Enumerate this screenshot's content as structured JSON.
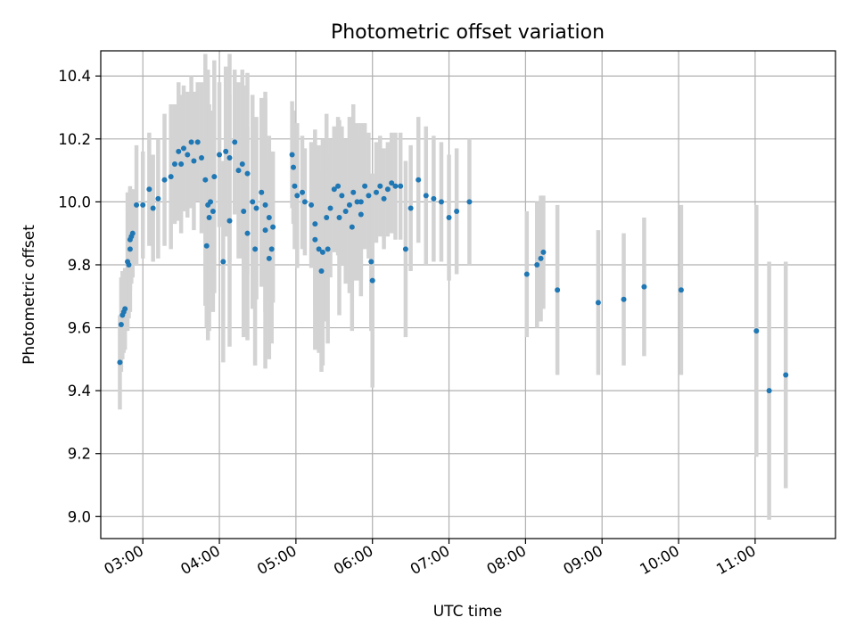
{
  "chart_data": {
    "type": "scatter",
    "title": "Photometric offset variation",
    "xlabel": "UTC time",
    "ylabel": "Photometric offset",
    "grid": true,
    "xlim": [
      "02:27",
      "12:03"
    ],
    "ylim": [
      8.93,
      10.48
    ],
    "x_ticks": [
      "03:00",
      "04:00",
      "05:00",
      "06:00",
      "07:00",
      "08:00",
      "09:00",
      "10:00",
      "11:00"
    ],
    "y_ticks": [
      "9.0",
      "9.2",
      "9.4",
      "9.6",
      "9.8",
      "10.0",
      "10.2",
      "10.4"
    ],
    "colors": {
      "points": "#1f77b4",
      "error_bars": "#d3d3d3",
      "grid": "#b0b0b0"
    },
    "series": [
      {
        "x": [
          "02:42",
          "02:43",
          "02:44",
          "02:45",
          "02:46",
          "02:48",
          "02:49",
          "02:50",
          "02:50",
          "02:51",
          "02:52",
          "02:55",
          "03:00",
          "03:05",
          "03:08",
          "03:12",
          "03:17",
          "03:22",
          "03:25",
          "03:28",
          "03:30",
          "03:32",
          "03:35",
          "03:38",
          "03:40",
          "03:43",
          "03:46",
          "03:49",
          "03:51",
          "03:53",
          "03:56",
          "04:00",
          "04:05",
          "04:08",
          "04:12",
          "04:15",
          "04:18",
          "04:22",
          "04:26",
          "04:29",
          "04:33",
          "04:36",
          "04:39",
          "04:42",
          "03:50",
          "03:52",
          "03:55",
          "04:03",
          "04:08",
          "04:19",
          "04:22",
          "04:28",
          "04:36",
          "04:39",
          "04:41",
          "04:57",
          "04:58",
          "04:59",
          "05:01",
          "05:05",
          "05:07",
          "05:12",
          "05:15",
          "05:18",
          "05:21",
          "05:24",
          "05:27",
          "05:30",
          "05:33",
          "05:36",
          "05:39",
          "05:42",
          "05:45",
          "05:48",
          "05:51",
          "05:54",
          "05:57",
          "05:15",
          "05:20",
          "05:25",
          "05:34",
          "05:44",
          "05:51",
          "05:59",
          "06:00",
          "06:03",
          "06:06",
          "06:09",
          "06:12",
          "06:15",
          "06:18",
          "06:22",
          "06:26",
          "06:30",
          "06:36",
          "06:42",
          "06:48",
          "06:54",
          "07:00",
          "07:06",
          "07:16",
          "08:01",
          "08:09",
          "08:12",
          "08:14",
          "08:25",
          "08:57",
          "09:17",
          "09:33",
          "10:02",
          "11:01",
          "11:11",
          "11:24"
        ],
        "y": [
          9.49,
          9.61,
          9.64,
          9.65,
          9.66,
          9.81,
          9.8,
          9.85,
          9.88,
          9.89,
          9.9,
          9.99,
          9.99,
          10.04,
          9.98,
          10.01,
          10.07,
          10.08,
          10.12,
          10.16,
          10.12,
          10.17,
          10.15,
          10.19,
          10.13,
          10.19,
          10.14,
          10.07,
          9.99,
          10.0,
          10.08,
          10.15,
          10.16,
          10.14,
          10.19,
          10.1,
          10.12,
          10.09,
          10.0,
          9.98,
          10.03,
          9.99,
          9.95,
          9.92,
          9.86,
          9.95,
          9.97,
          9.81,
          9.94,
          9.97,
          9.9,
          9.85,
          9.91,
          9.82,
          9.85,
          10.15,
          10.11,
          10.05,
          10.02,
          10.03,
          10.0,
          9.99,
          9.93,
          9.85,
          9.84,
          9.95,
          9.98,
          10.04,
          10.05,
          10.02,
          9.97,
          9.99,
          10.03,
          10.0,
          10.0,
          10.05,
          10.02,
          9.88,
          9.78,
          9.85,
          9.95,
          9.92,
          9.96,
          9.81,
          9.75,
          10.03,
          10.05,
          10.01,
          10.04,
          10.06,
          10.05,
          10.05,
          9.85,
          9.98,
          10.07,
          10.02,
          10.01,
          10.0,
          9.95,
          9.97,
          10.0,
          9.77,
          9.8,
          9.82,
          9.84,
          9.72,
          9.68,
          9.69,
          9.73,
          9.72,
          9.59,
          9.4,
          9.45
        ],
        "err": [
          0.15,
          0.15,
          0.14,
          0.13,
          0.13,
          0.22,
          0.17,
          0.2,
          0.16,
          0.15,
          0.14,
          0.19,
          0.17,
          0.18,
          0.17,
          0.19,
          0.21,
          0.23,
          0.19,
          0.22,
          0.22,
          0.2,
          0.2,
          0.21,
          0.22,
          0.19,
          0.24,
          0.4,
          0.43,
          0.29,
          0.37,
          0.23,
          0.27,
          0.33,
          0.23,
          0.28,
          0.3,
          0.32,
          0.34,
          0.29,
          0.3,
          0.34,
          0.26,
          0.24,
          0.26,
          0.36,
          0.32,
          0.32,
          0.4,
          0.4,
          0.34,
          0.37,
          0.44,
          0.32,
          0.3,
          0.17,
          0.18,
          0.2,
          0.23,
          0.18,
          0.17,
          0.2,
          0.27,
          0.33,
          0.36,
          0.33,
          0.22,
          0.2,
          0.22,
          0.22,
          0.23,
          0.28,
          0.28,
          0.25,
          0.25,
          0.2,
          0.2,
          0.35,
          0.32,
          0.3,
          0.31,
          0.33,
          0.26,
          0.22,
          0.34,
          0.16,
          0.16,
          0.16,
          0.15,
          0.16,
          0.17,
          0.17,
          0.28,
          0.2,
          0.2,
          0.22,
          0.2,
          0.19,
          0.2,
          0.2,
          0.2,
          0.2,
          0.2,
          0.2,
          0.18,
          0.27,
          0.23,
          0.21,
          0.22,
          0.27,
          0.4,
          0.41,
          0.36
        ]
      }
    ]
  }
}
